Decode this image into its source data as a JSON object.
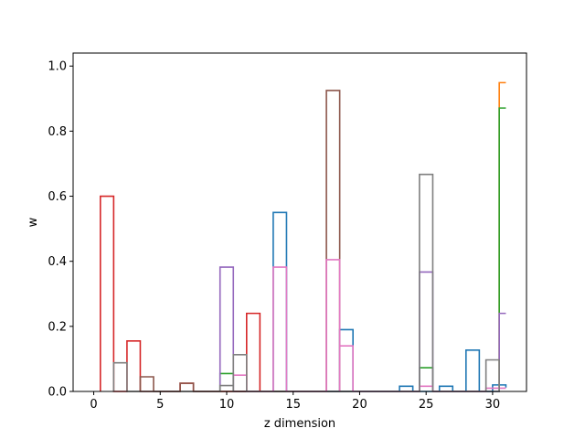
{
  "chart_data": {
    "type": "histogram-step",
    "xlabel": "z dimension",
    "ylabel": "w",
    "xlim": [
      -1.55,
      32.55
    ],
    "ylim": [
      0,
      1.04
    ],
    "xticks": [
      0,
      5,
      10,
      15,
      20,
      25,
      30
    ],
    "yticks": [
      0.0,
      0.2,
      0.4,
      0.6,
      0.8,
      1.0
    ],
    "grid": false,
    "series": [
      {
        "color": "#1f77b4",
        "x": [
          13.5,
          14.5,
          18.5,
          19.5,
          23,
          24,
          26,
          27,
          28,
          29,
          30,
          31
        ],
        "y": [
          0.55,
          0,
          0.19,
          0,
          0.016,
          0,
          0.016,
          0,
          0.127,
          0,
          0.02,
          0.012
        ]
      },
      {
        "color": "#ff7f0e",
        "x": [
          30.5,
          31
        ],
        "y": [
          0.949,
          0.949
        ]
      },
      {
        "color": "#2ca02c",
        "x": [
          9.5,
          10.5,
          24.5,
          25.5,
          30.5,
          31
        ],
        "y": [
          0.055,
          0,
          0.073,
          0,
          0.871,
          0.871
        ]
      },
      {
        "color": "#d62728",
        "x": [
          0.5,
          1.5,
          2.5,
          3.5,
          6.5,
          7.5,
          11.5,
          12.5
        ],
        "y": [
          0.6,
          0,
          0.155,
          0,
          0.025,
          0,
          0.24,
          0
        ]
      },
      {
        "color": "#9467bd",
        "x": [
          9.5,
          10.5,
          24.5,
          25.5,
          30.5,
          31
        ],
        "y": [
          0.382,
          0,
          0.367,
          0,
          0.24,
          0.24
        ]
      },
      {
        "color": "#8c564b",
        "x": [
          3.5,
          4.5,
          6.5,
          7.5,
          17.5,
          18.5
        ],
        "y": [
          0.045,
          0,
          0.025,
          0,
          0.925,
          0
        ]
      },
      {
        "color": "#e377c2",
        "x": [
          10.5,
          11.5,
          13.5,
          14.5,
          17.5,
          18.5,
          18.5,
          19.5,
          24.5,
          25.5,
          29.5,
          31
        ],
        "y": [
          0.05,
          0,
          0.382,
          0,
          0.405,
          0,
          0.14,
          0,
          0.016,
          0,
          0.01,
          0.01
        ]
      },
      {
        "color": "#7f7f7f",
        "x": [
          1.5,
          2.5,
          9.5,
          10.5,
          10.5,
          11.5,
          24.5,
          25.5,
          29.5,
          30.5
        ],
        "y": [
          0.088,
          0,
          0.018,
          0,
          0.113,
          0,
          0.667,
          0,
          0.097,
          0
        ]
      }
    ]
  }
}
